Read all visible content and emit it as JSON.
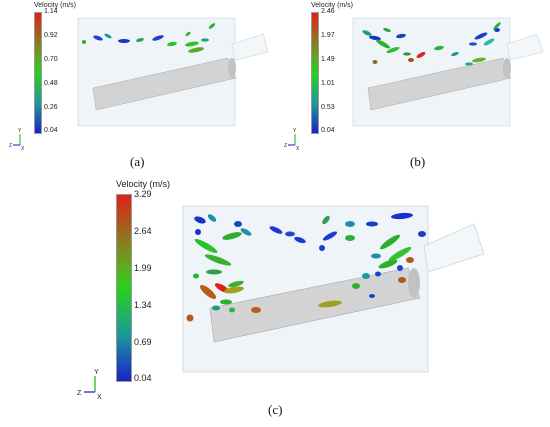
{
  "panels": [
    {
      "id": "a",
      "caption": "(a)",
      "colorbar": {
        "title": "Velocity (m/s)",
        "ticks": [
          "1.14",
          "0.92",
          "0.70",
          "0.48",
          "0.26",
          "0.04"
        ]
      }
    },
    {
      "id": "b",
      "caption": "(b)",
      "colorbar": {
        "title": "Velocity (m/s)",
        "ticks": [
          "2.46",
          "1.97",
          "1.49",
          "1.01",
          "0.53",
          "0.04"
        ]
      }
    },
    {
      "id": "c",
      "caption": "(c)",
      "colorbar": {
        "title": "Velocity (m/s)",
        "ticks": [
          "3.29",
          "2.64",
          "1.99",
          "1.34",
          "0.69",
          "0.04"
        ]
      }
    }
  ],
  "axes_triad": {
    "z": "Z",
    "y": "Y",
    "x": "X"
  },
  "colors": {
    "gradient_top": "#e0201a",
    "gradient_mid": "#2bd01c",
    "gradient_bottom": "#1a22c8",
    "domain_fill": "#eef4f8",
    "cylinder": "#d3d3d3"
  }
}
